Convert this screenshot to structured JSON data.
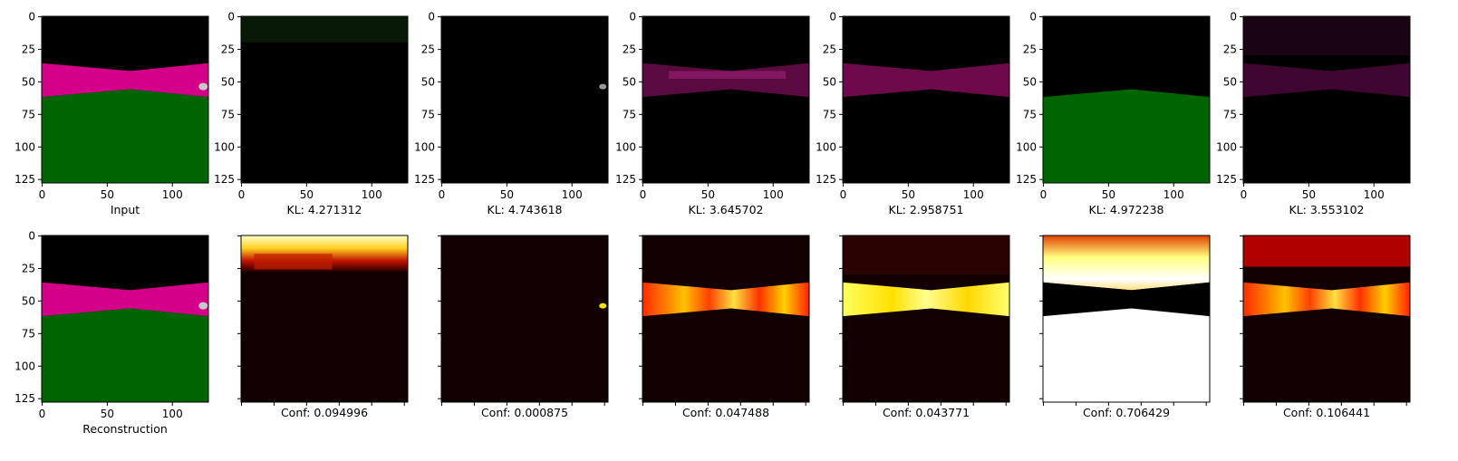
{
  "chart_data": {
    "type": "image-grid",
    "axis": {
      "y_ticks": [
        0,
        25,
        50,
        75,
        100,
        125
      ],
      "x_ticks": [
        0,
        50,
        100
      ],
      "range": [
        0,
        128
      ]
    },
    "panels": [
      {
        "row": 0,
        "col": 0,
        "caption": "Input",
        "kind": "input"
      },
      {
        "row": 0,
        "col": 1,
        "caption": "KL: 4.271312",
        "kind": "slot-sky"
      },
      {
        "row": 0,
        "col": 2,
        "caption": "KL: 4.743618",
        "kind": "slot-object"
      },
      {
        "row": 0,
        "col": 3,
        "caption": "KL: 3.645702",
        "kind": "slot-road"
      },
      {
        "row": 0,
        "col": 4,
        "caption": "KL: 2.958751",
        "kind": "slot-road-bright"
      },
      {
        "row": 0,
        "col": 5,
        "caption": "KL: 4.972238",
        "kind": "slot-ground"
      },
      {
        "row": 0,
        "col": 6,
        "caption": "KL: 3.553102",
        "kind": "slot-road-dim"
      },
      {
        "row": 1,
        "col": 0,
        "caption": "Reconstruction",
        "kind": "input"
      },
      {
        "row": 1,
        "col": 1,
        "caption": "Conf: 0.094996",
        "kind": "conf-sky"
      },
      {
        "row": 1,
        "col": 2,
        "caption": "Conf: 0.000875",
        "kind": "conf-object"
      },
      {
        "row": 1,
        "col": 3,
        "caption": "Conf: 0.047488",
        "kind": "conf-road"
      },
      {
        "row": 1,
        "col": 4,
        "caption": "Conf: 0.043771",
        "kind": "conf-road-bright"
      },
      {
        "row": 1,
        "col": 5,
        "caption": "Conf: 0.706429",
        "kind": "conf-ground"
      },
      {
        "row": 1,
        "col": 6,
        "caption": "Conf: 0.106441",
        "kind": "conf-road-dim"
      }
    ],
    "colors": {
      "sky": "#000000",
      "road": "#d4008a",
      "ground": "#006400",
      "heat_low": "#120000",
      "heat_mid": "#e01000",
      "heat_high": "#ffff80",
      "heat_max": "#ffffff"
    }
  }
}
